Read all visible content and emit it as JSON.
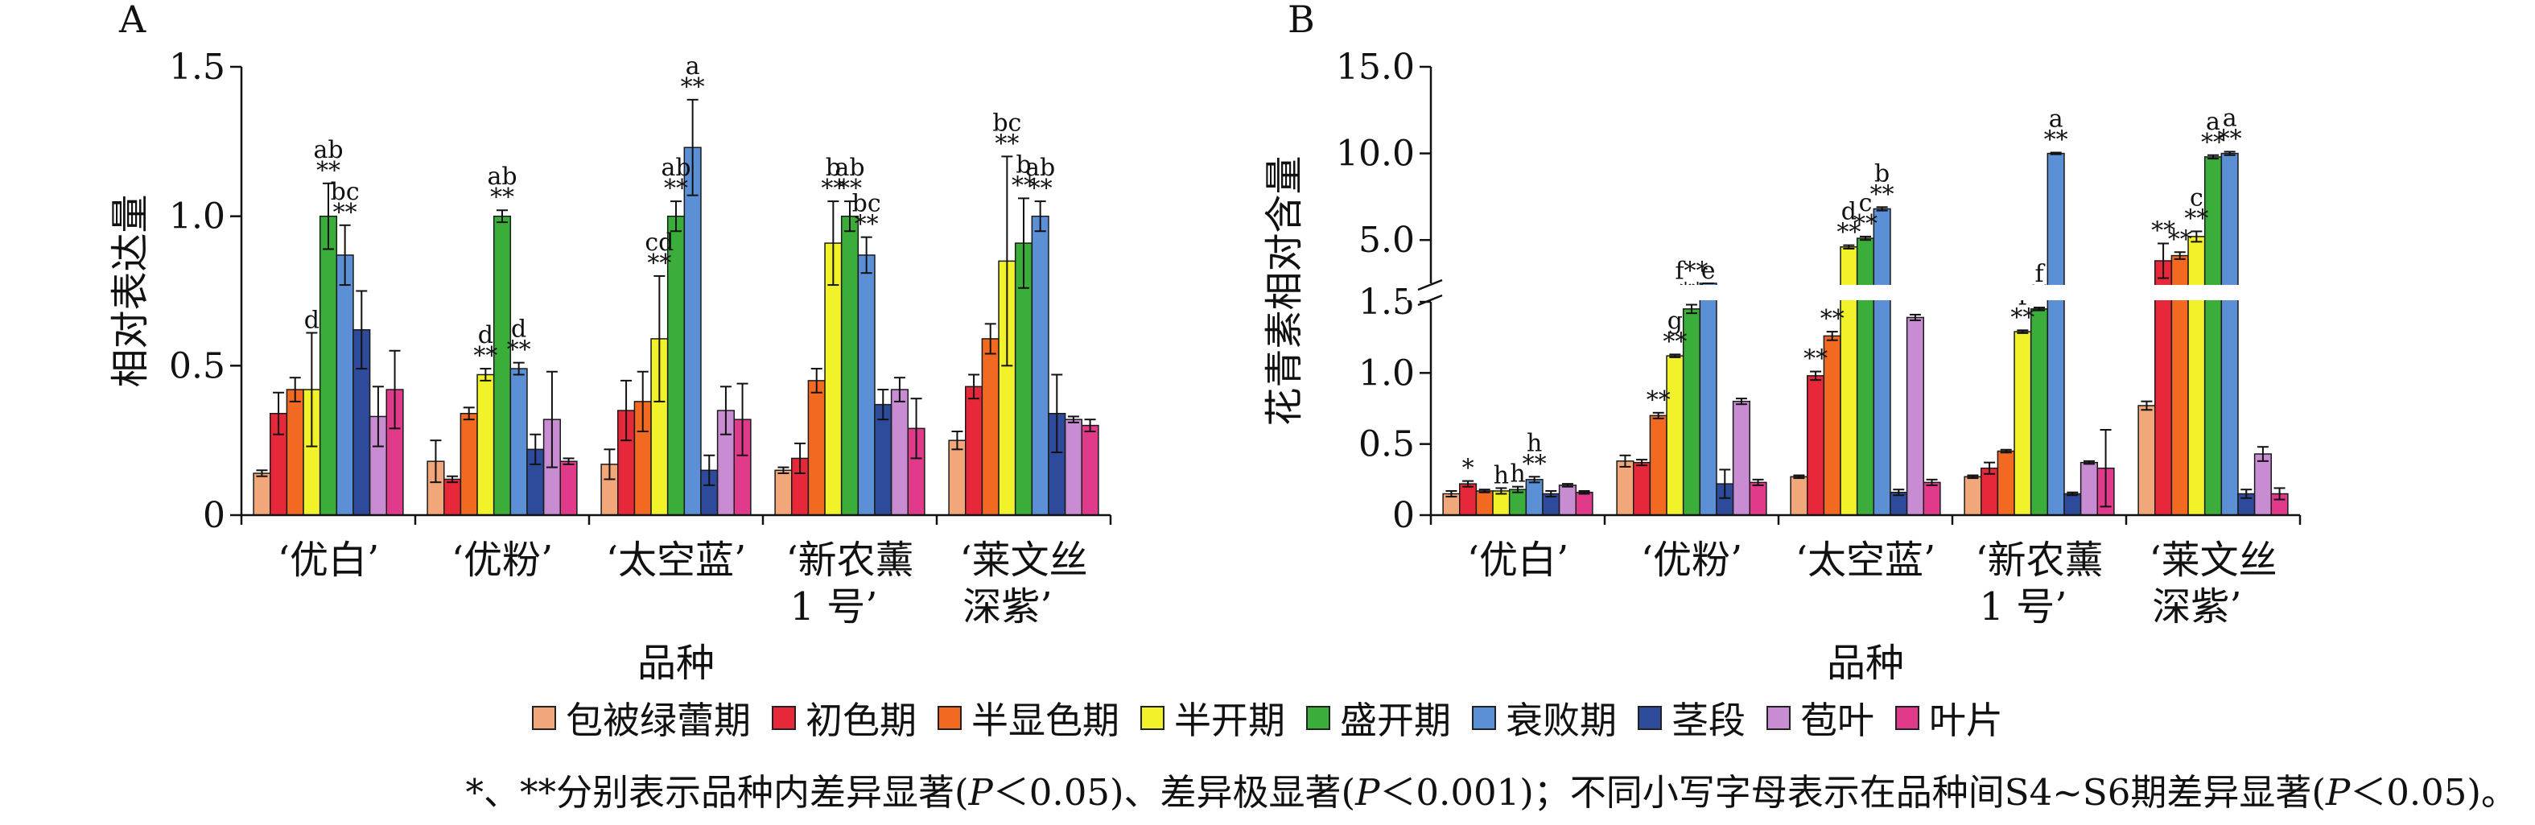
{
  "legend": [
    {
      "label": "包被绿蕾期",
      "color": "#f2a77b"
    },
    {
      "label": "初色期",
      "color": "#e6283a"
    },
    {
      "label": "半显色期",
      "color": "#f26a21"
    },
    {
      "label": "半开期",
      "color": "#f2f22a"
    },
    {
      "label": "盛开期",
      "color": "#3aad3a"
    },
    {
      "label": "衰败期",
      "color": "#5b8fd6"
    },
    {
      "label": "茎段",
      "color": "#2e4a9a"
    },
    {
      "label": "苞叶",
      "color": "#c78cd2"
    },
    {
      "label": "叶片",
      "color": "#e23a8a"
    }
  ],
  "footnote": {
    "part1": "*、**分别表示品种内差异显著(",
    "p1": "P",
    "part2": "＜0.05)、差异极显著(",
    "p2": "P",
    "part3": "＜0.001)；不同小写字母表示在品种间S4~S6期差异显著(",
    "p3": "P",
    "part4": "＜0.05)。"
  },
  "chart_data": [
    {
      "type": "bar",
      "panel_label": "A",
      "categories": [
        "‘优白’",
        "‘优粉’",
        "‘太空蓝’",
        "‘新农薰\n1 号’",
        "‘莱文丝\n深紫’"
      ],
      "xlabel": "品种",
      "ylabel": "相对表达量",
      "ylim": [
        0,
        1.5
      ],
      "yticks": [
        "0",
        "0.5",
        "1.0",
        "1.5"
      ],
      "series": [
        {
          "name": "包被绿蕾期",
          "values": [
            0.14,
            0.18,
            0.17,
            0.15,
            0.25
          ],
          "errors": [
            0.01,
            0.07,
            0.05,
            0.01,
            0.03
          ]
        },
        {
          "name": "初色期",
          "values": [
            0.34,
            0.12,
            0.35,
            0.19,
            0.43
          ],
          "errors": [
            0.07,
            0.01,
            0.1,
            0.05,
            0.04
          ]
        },
        {
          "name": "半显色期",
          "values": [
            0.42,
            0.34,
            0.38,
            0.45,
            0.59
          ],
          "errors": [
            0.04,
            0.02,
            0.1,
            0.04,
            0.05
          ]
        },
        {
          "name": "半开期",
          "values": [
            0.42,
            0.47,
            0.59,
            0.91,
            0.85
          ],
          "errors": [
            0.19,
            0.02,
            0.21,
            0.14,
            0.35
          ]
        },
        {
          "name": "盛开期",
          "values": [
            1.0,
            1.0,
            1.0,
            1.0,
            0.91
          ],
          "errors": [
            0.11,
            0.02,
            0.05,
            0.05,
            0.15
          ]
        },
        {
          "name": "衰败期",
          "values": [
            0.87,
            0.49,
            1.23,
            0.87,
            1.0
          ],
          "errors": [
            0.1,
            0.02,
            0.16,
            0.06,
            0.05
          ]
        },
        {
          "name": "茎段",
          "values": [
            0.62,
            0.22,
            0.15,
            0.37,
            0.34
          ],
          "errors": [
            0.13,
            0.05,
            0.05,
            0.05,
            0.13
          ]
        },
        {
          "name": "苞叶",
          "values": [
            0.33,
            0.32,
            0.35,
            0.42,
            0.32
          ],
          "errors": [
            0.1,
            0.16,
            0.08,
            0.04,
            0.01
          ]
        },
        {
          "name": "叶片",
          "values": [
            0.42,
            0.18,
            0.32,
            0.29,
            0.3
          ],
          "errors": [
            0.13,
            0.01,
            0.12,
            0.1,
            0.02
          ]
        }
      ],
      "annotations": [
        {
          "category": 0,
          "series": 3,
          "lines": [
            "d"
          ]
        },
        {
          "category": 0,
          "series": 4,
          "lines": [
            "ab",
            "**"
          ]
        },
        {
          "category": 0,
          "series": 5,
          "lines": [
            "bc",
            "**"
          ]
        },
        {
          "category": 1,
          "series": 3,
          "lines": [
            "d",
            "**"
          ]
        },
        {
          "category": 1,
          "series": 4,
          "lines": [
            "ab",
            "**"
          ]
        },
        {
          "category": 1,
          "series": 5,
          "lines": [
            "d",
            "**"
          ]
        },
        {
          "category": 2,
          "series": 3,
          "lines": [
            "cd",
            "**"
          ]
        },
        {
          "category": 2,
          "series": 4,
          "lines": [
            "ab",
            "**"
          ]
        },
        {
          "category": 2,
          "series": 5,
          "lines": [
            "a",
            "**"
          ]
        },
        {
          "category": 3,
          "series": 3,
          "lines": [
            "b",
            "**"
          ]
        },
        {
          "category": 3,
          "series": 4,
          "lines": [
            "ab",
            "**"
          ]
        },
        {
          "category": 3,
          "series": 5,
          "lines": [
            "bc",
            "**"
          ]
        },
        {
          "category": 4,
          "series": 3,
          "lines": [
            "bc",
            "**"
          ]
        },
        {
          "category": 4,
          "series": 4,
          "lines": [
            "b",
            "**"
          ]
        },
        {
          "category": 4,
          "series": 5,
          "lines": [
            "ab",
            "**"
          ]
        }
      ]
    },
    {
      "type": "bar",
      "panel_label": "B",
      "categories": [
        "‘优白’",
        "‘优粉’",
        "‘太空蓝’",
        "‘新农薰\n1 号’",
        "‘莱文丝\n深紫’"
      ],
      "xlabel": "品种",
      "ylabel": "花青素相对含量",
      "y_axis_break": {
        "lower": [
          0,
          1.5
        ],
        "upper": [
          2.5,
          15.0
        ]
      },
      "yticks_lower": [
        "0",
        "0.5",
        "1.0",
        "1.5"
      ],
      "yticks_upper": [
        "5.0",
        "10.0",
        "15.0"
      ],
      "series": [
        {
          "name": "包被绿蕾期",
          "values": [
            0.15,
            0.38,
            0.27,
            0.27,
            0.77
          ],
          "errors": [
            0.02,
            0.04,
            0.01,
            0.01,
            0.03
          ]
        },
        {
          "name": "初色期",
          "values": [
            0.22,
            0.37,
            0.98,
            0.33,
            3.8
          ],
          "errors": [
            0.02,
            0.02,
            0.03,
            0.04,
            1.0
          ]
        },
        {
          "name": "半显色期",
          "values": [
            0.17,
            0.7,
            1.26,
            0.45,
            4.1
          ],
          "errors": [
            0.01,
            0.02,
            0.03,
            0.01,
            0.2
          ]
        },
        {
          "name": "半开期",
          "values": [
            0.17,
            1.12,
            4.6,
            1.29,
            5.2
          ],
          "errors": [
            0.02,
            0.01,
            0.1,
            0.01,
            0.3
          ]
        },
        {
          "name": "盛开期",
          "values": [
            0.18,
            1.45,
            5.1,
            1.45,
            9.8
          ],
          "errors": [
            0.02,
            0.03,
            0.1,
            0.01,
            0.1
          ]
        },
        {
          "name": "衰败期",
          "values": [
            0.25,
            1.9,
            6.8,
            10.0,
            10.0
          ],
          "errors": [
            0.02,
            0.05,
            0.1,
            0.05,
            0.1
          ]
        },
        {
          "name": "茎段",
          "values": [
            0.15,
            0.22,
            0.16,
            0.15,
            0.15
          ],
          "errors": [
            0.02,
            0.1,
            0.02,
            0.01,
            0.03
          ]
        },
        {
          "name": "苞叶",
          "values": [
            0.21,
            0.8,
            1.39,
            0.37,
            0.43
          ],
          "errors": [
            0.01,
            0.02,
            0.02,
            0.01,
            0.05
          ]
        },
        {
          "name": "叶片",
          "values": [
            0.16,
            0.23,
            0.23,
            0.33,
            0.15
          ],
          "errors": [
            0.01,
            0.02,
            0.02,
            0.27,
            0.04
          ]
        }
      ],
      "annotations": [
        {
          "category": 0,
          "series": 1,
          "lines": [
            "*"
          ]
        },
        {
          "category": 0,
          "series": 3,
          "lines": [
            "h"
          ]
        },
        {
          "category": 0,
          "series": 4,
          "lines": [
            "h"
          ]
        },
        {
          "category": 0,
          "series": 5,
          "lines": [
            "h",
            "**"
          ]
        },
        {
          "category": 1,
          "series": 2,
          "lines": [
            "**"
          ]
        },
        {
          "category": 1,
          "series": 3,
          "lines": [
            "g",
            "**"
          ]
        },
        {
          "category": 1,
          "series": 4,
          "lines": [
            "f**",
            "**"
          ]
        },
        {
          "category": 1,
          "series": 5,
          "lines": [
            "e"
          ]
        },
        {
          "category": 2,
          "series": 1,
          "lines": [
            "**"
          ]
        },
        {
          "category": 2,
          "series": 2,
          "lines": [
            "**"
          ]
        },
        {
          "category": 2,
          "series": 3,
          "lines": [
            "d",
            "**"
          ]
        },
        {
          "category": 2,
          "series": 4,
          "lines": [
            "c",
            "**"
          ]
        },
        {
          "category": 2,
          "series": 5,
          "lines": [
            "b",
            "**"
          ]
        },
        {
          "category": 3,
          "series": 3,
          "lines": [
            "f",
            "**"
          ]
        },
        {
          "category": 3,
          "series": 4,
          "lines": [
            "f",
            "**"
          ]
        },
        {
          "category": 3,
          "series": 5,
          "lines": [
            "a",
            "**"
          ]
        },
        {
          "category": 4,
          "series": 1,
          "lines": [
            "**"
          ]
        },
        {
          "category": 4,
          "series": 2,
          "lines": [
            "**"
          ]
        },
        {
          "category": 4,
          "series": 3,
          "lines": [
            "c",
            "**"
          ]
        },
        {
          "category": 4,
          "series": 4,
          "lines": [
            "a",
            "**"
          ]
        },
        {
          "category": 4,
          "series": 5,
          "lines": [
            "a",
            "**"
          ]
        }
      ]
    }
  ]
}
